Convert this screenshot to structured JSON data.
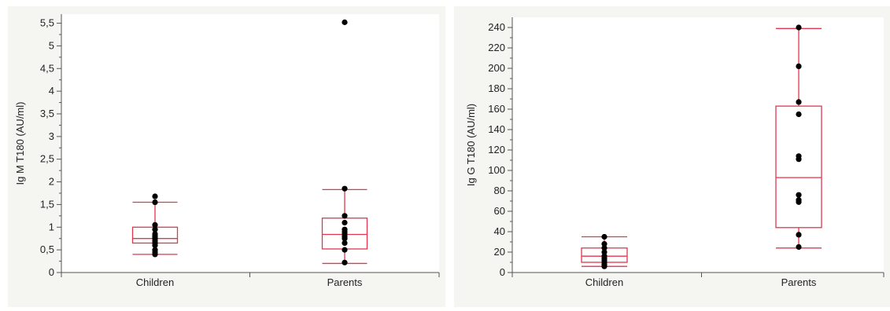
{
  "chart_data": [
    {
      "type": "box",
      "title": "",
      "xlabel": "",
      "ylabel": "Ig M T180 (AU/ml)",
      "ylim": [
        0,
        5.7
      ],
      "yticks": [
        "0",
        "0,5",
        "1",
        "1,5",
        "2",
        "2,5",
        "3",
        "3,5",
        "4",
        "4,5",
        "5",
        "5,5"
      ],
      "ytick_values": [
        0,
        0.5,
        1,
        1.5,
        2,
        2.5,
        3,
        3.5,
        4,
        4.5,
        5,
        5.5
      ],
      "categories": [
        "Children",
        "Parents"
      ],
      "boxes": [
        {
          "name": "Children",
          "whisker_low": 0.4,
          "q1": 0.65,
          "median": 0.75,
          "q3": 1.0,
          "whisker_high": 1.55,
          "points": [
            0.4,
            0.45,
            0.5,
            0.6,
            0.65,
            0.7,
            0.75,
            0.8,
            0.85,
            0.95,
            1.05,
            1.55,
            1.68
          ]
        },
        {
          "name": "Parents",
          "whisker_low": 0.2,
          "q1": 0.52,
          "median": 0.84,
          "q3": 1.2,
          "whisker_high": 1.83,
          "points": [
            0.22,
            0.5,
            0.65,
            0.75,
            0.8,
            0.85,
            0.9,
            0.95,
            1.1,
            1.25,
            1.85,
            5.52
          ]
        }
      ],
      "colors": {
        "box": "#e0364f",
        "point": "#000000",
        "background": "#f5f5f1",
        "plot_bg": "#ffffff"
      }
    },
    {
      "type": "box",
      "title": "",
      "xlabel": "",
      "ylabel": "Ig G T180 (AU/ml)",
      "ylim": [
        0,
        250
      ],
      "yticks": [
        "0",
        "20",
        "40",
        "60",
        "80",
        "100",
        "120",
        "140",
        "160",
        "180",
        "200",
        "220",
        "240"
      ],
      "ytick_values": [
        0,
        20,
        40,
        60,
        80,
        100,
        120,
        140,
        160,
        180,
        200,
        220,
        240
      ],
      "categories": [
        "Children",
        "Parents"
      ],
      "boxes": [
        {
          "name": "Children",
          "whisker_low": 6,
          "q1": 10,
          "median": 16,
          "q3": 24,
          "whisker_high": 35,
          "points": [
            6,
            8,
            10,
            12,
            14,
            16,
            20,
            24,
            28,
            35
          ]
        },
        {
          "name": "Parents",
          "whisker_low": 24,
          "q1": 44,
          "median": 93,
          "q3": 163,
          "whisker_high": 239,
          "points": [
            25,
            37,
            69,
            71,
            76,
            111,
            114,
            155,
            167,
            202,
            240
          ]
        }
      ],
      "colors": {
        "box": "#e0364f",
        "point": "#000000",
        "background": "#f5f5f1",
        "plot_bg": "#ffffff"
      }
    }
  ]
}
